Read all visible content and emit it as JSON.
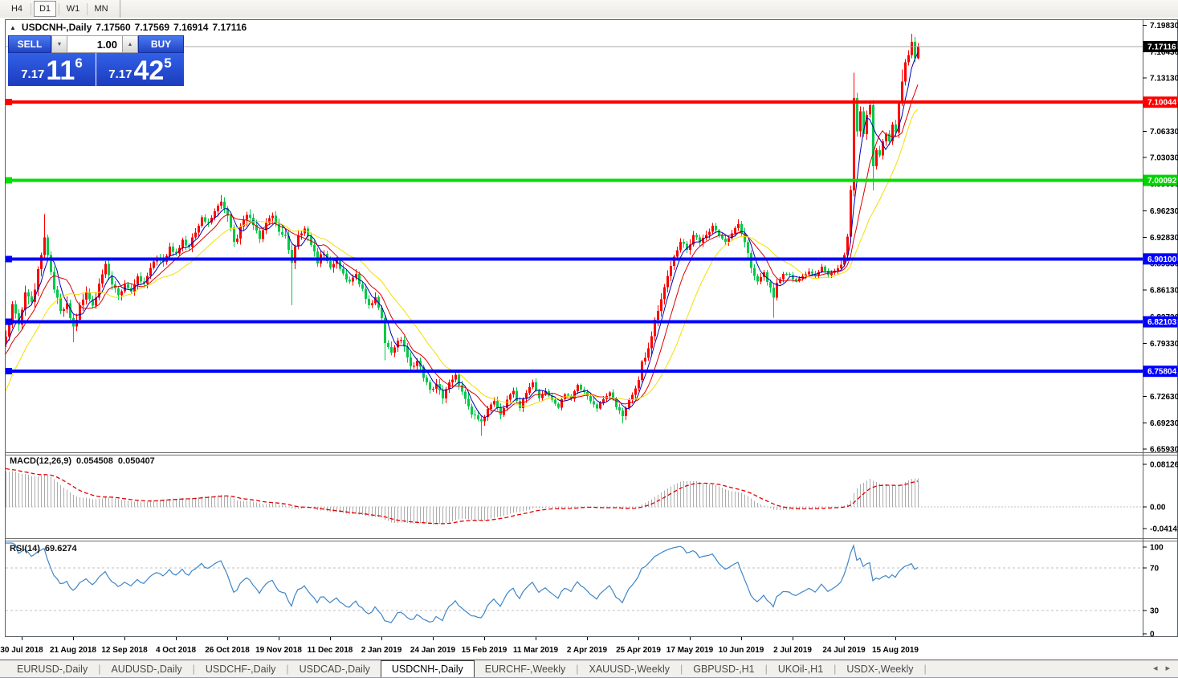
{
  "toolbar": {
    "timeframes": [
      {
        "label": "H4",
        "active": false
      },
      {
        "label": "D1",
        "active": true
      },
      {
        "label": "W1",
        "active": false
      },
      {
        "label": "MN",
        "active": false
      }
    ]
  },
  "title": {
    "collapse_icon": "▲",
    "symbol": "USDCNH-,Daily",
    "open": "7.17560",
    "high": "7.17569",
    "low": "7.16914",
    "close": "7.17116"
  },
  "trade_panel": {
    "sell_label": "SELL",
    "buy_label": "BUY",
    "volume": "1.00",
    "down_arrow": "▼",
    "up_arrow": "▲",
    "sell_price": {
      "prefix": "7.17",
      "big": "11",
      "sup": "6"
    },
    "buy_price": {
      "prefix": "7.17",
      "big": "42",
      "sup": "5"
    }
  },
  "indicator_labels": {
    "macd": {
      "name": "MACD(12,26,9)",
      "main_value": "0.054508",
      "signal_value": "0.050407"
    },
    "rsi": {
      "name": "RSI(14)",
      "value": "69.6274"
    }
  },
  "tabs": {
    "nav_left": "◂",
    "nav_right": "▸",
    "items": [
      {
        "label": "EURUSD-,Daily",
        "active": false
      },
      {
        "label": "AUDUSD-,Daily",
        "active": false
      },
      {
        "label": "USDCHF-,Daily",
        "active": false
      },
      {
        "label": "USDCAD-,Daily",
        "active": false
      },
      {
        "label": "USDCNH-,Daily",
        "active": true
      },
      {
        "label": "EURCHF-,Weekly",
        "active": false
      },
      {
        "label": "XAUUSD-,Weekly",
        "active": false
      },
      {
        "label": "GBPUSD-,H1",
        "active": false
      },
      {
        "label": "UKOil-,H1",
        "active": false
      },
      {
        "label": "USDX-,Weekly",
        "active": false
      }
    ]
  },
  "chart_data": {
    "type": "candlestick",
    "symbol": "USDCNH",
    "timeframe": "Daily",
    "current": {
      "open": 7.1756,
      "high": 7.17569,
      "low": 7.16914,
      "close": 7.17116
    },
    "price_axis_ticks": [
      "7.19830",
      "7.16430",
      "7.13130",
      "7.09730",
      "7.06330",
      "7.03030",
      "6.99630",
      "6.96230",
      "6.92830",
      "6.89530",
      "6.86130",
      "6.82730",
      "6.79330",
      "6.75930",
      "6.72630",
      "6.69230",
      "6.65930"
    ],
    "price_badges": [
      {
        "label": "7.17116",
        "color": "#000000"
      },
      {
        "label": "7.10044",
        "color": "#FF0000"
      },
      {
        "label": "7.00092",
        "color": "#00D400"
      },
      {
        "label": "6.90100",
        "color": "#0000FF"
      },
      {
        "label": "6.82103",
        "color": "#0000FF"
      },
      {
        "label": "6.75804",
        "color": "#0000FF"
      }
    ],
    "hlines": [
      {
        "price": 7.10044,
        "color": "#FF0000"
      },
      {
        "price": 7.00092,
        "color": "#00E000"
      },
      {
        "price": 6.901,
        "color": "#0000FF"
      },
      {
        "price": 6.82103,
        "color": "#0000FF"
      },
      {
        "price": 6.75804,
        "color": "#0000FF"
      }
    ],
    "current_price_line": {
      "price": 7.17116,
      "color": "#A8A8A8"
    },
    "date_labels": [
      "30 Jul 2018",
      "21 Aug 2018",
      "12 Sep 2018",
      "4 Oct 2018",
      "26 Oct 2018",
      "19 Nov 2018",
      "11 Dec 2018",
      "2 Jan 2019",
      "24 Jan 2019",
      "15 Feb 2019",
      "11 Mar 2019",
      "2 Apr 2019",
      "25 Apr 2019",
      "17 May 2019",
      "10 Jun 2019",
      "2 Jul 2019",
      "24 Jul 2019",
      "15 Aug 2019"
    ],
    "macd_axis": [
      "0.081265",
      "0.00",
      "-0.041412"
    ],
    "rsi_axis": [
      "100",
      "70",
      "30",
      "0"
    ],
    "rsi_levels": [
      70,
      30
    ],
    "ma_periods": [
      5,
      10,
      20
    ],
    "macd_params": [
      12,
      26,
      9
    ],
    "rsi_period": 14,
    "colors": {
      "candle_up": "#FF0000",
      "candle_down": "#00C848",
      "ma_fast": "#0000B8",
      "ma_mid": "#DC0000",
      "ma_slow": "#F2DF00",
      "macd_hist": "#ACACAC",
      "macd_signal": "#E00000",
      "rsi": "#3E86C8",
      "level_dash": "#C0C0C0"
    },
    "close_anchors": [
      [
        7,
        6.8,
        0.006
      ],
      [
        15,
        6.84,
        0.008
      ],
      [
        23,
        6.822,
        0.008
      ],
      [
        31,
        6.858,
        0.008
      ],
      [
        39,
        6.846,
        0.008
      ],
      [
        47,
        6.885,
        0.007
      ],
      [
        55,
        6.93,
        0.008
      ],
      [
        59,
        6.905,
        0.007
      ],
      [
        67,
        6.862,
        0.007
      ],
      [
        75,
        6.838,
        0.006
      ],
      [
        83,
        6.842,
        0.007
      ],
      [
        91,
        6.812,
        0.006
      ],
      [
        99,
        6.842,
        0.006
      ],
      [
        107,
        6.858,
        0.006
      ],
      [
        115,
        6.842,
        0.006
      ],
      [
        123,
        6.868,
        0.006
      ],
      [
        131,
        6.893,
        0.006
      ],
      [
        139,
        6.872,
        0.006
      ],
      [
        147,
        6.852,
        0.006
      ],
      [
        155,
        6.868,
        0.005
      ],
      [
        163,
        6.858,
        0.005
      ],
      [
        171,
        6.878,
        0.005
      ],
      [
        179,
        6.87,
        0.005
      ],
      [
        187,
        6.888,
        0.005
      ],
      [
        195,
        6.905,
        0.005
      ],
      [
        203,
        6.898,
        0.005
      ],
      [
        211,
        6.916,
        0.005
      ],
      [
        219,
        6.908,
        0.005
      ],
      [
        227,
        6.925,
        0.005
      ],
      [
        235,
        6.917,
        0.005
      ],
      [
        243,
        6.936,
        0.005
      ],
      [
        251,
        6.955,
        0.005
      ],
      [
        259,
        6.945,
        0.005
      ],
      [
        267,
        6.964,
        0.005
      ],
      [
        275,
        6.974,
        0.005
      ],
      [
        283,
        6.955,
        0.006
      ],
      [
        291,
        6.92,
        0.006
      ],
      [
        299,
        6.94,
        0.006
      ],
      [
        307,
        6.956,
        0.006
      ],
      [
        315,
        6.947,
        0.005
      ],
      [
        323,
        6.928,
        0.006
      ],
      [
        331,
        6.948,
        0.005
      ],
      [
        339,
        6.957,
        0.005
      ],
      [
        347,
        6.938,
        0.006
      ],
      [
        355,
        6.928,
        0.006
      ],
      [
        363,
        6.898,
        0.007
      ],
      [
        371,
        6.928,
        0.006
      ],
      [
        379,
        6.94,
        0.005
      ],
      [
        387,
        6.918,
        0.005
      ],
      [
        395,
        6.898,
        0.006
      ],
      [
        403,
        6.91,
        0.005
      ],
      [
        411,
        6.89,
        0.005
      ],
      [
        419,
        6.9,
        0.005
      ],
      [
        427,
        6.882,
        0.005
      ],
      [
        435,
        6.872,
        0.005
      ],
      [
        443,
        6.88,
        0.005
      ],
      [
        451,
        6.862,
        0.005
      ],
      [
        459,
        6.842,
        0.005
      ],
      [
        467,
        6.852,
        0.005
      ],
      [
        475,
        6.828,
        0.006
      ],
      [
        479,
        6.792,
        0.006
      ],
      [
        487,
        6.782,
        0.006
      ],
      [
        495,
        6.8,
        0.006
      ],
      [
        503,
        6.792,
        0.005
      ],
      [
        511,
        6.762,
        0.006
      ],
      [
        519,
        6.772,
        0.005
      ],
      [
        527,
        6.752,
        0.005
      ],
      [
        535,
        6.732,
        0.006
      ],
      [
        543,
        6.742,
        0.005
      ],
      [
        551,
        6.722,
        0.006
      ],
      [
        559,
        6.745,
        0.005
      ],
      [
        567,
        6.752,
        0.005
      ],
      [
        575,
        6.732,
        0.005
      ],
      [
        583,
        6.712,
        0.006
      ],
      [
        591,
        6.7,
        0.006
      ],
      [
        599,
        6.692,
        0.005
      ],
      [
        607,
        6.712,
        0.005
      ],
      [
        615,
        6.722,
        0.005
      ],
      [
        623,
        6.702,
        0.005
      ],
      [
        631,
        6.722,
        0.004
      ],
      [
        639,
        6.732,
        0.004
      ],
      [
        647,
        6.712,
        0.004
      ],
      [
        655,
        6.73,
        0.004
      ],
      [
        663,
        6.742,
        0.004
      ],
      [
        671,
        6.722,
        0.004
      ],
      [
        679,
        6.732,
        0.003
      ],
      [
        687,
        6.722,
        0.003
      ],
      [
        695,
        6.712,
        0.003
      ],
      [
        703,
        6.73,
        0.003
      ],
      [
        711,
        6.722,
        0.003
      ],
      [
        719,
        6.74,
        0.003
      ],
      [
        727,
        6.732,
        0.003
      ],
      [
        735,
        6.72,
        0.003
      ],
      [
        743,
        6.712,
        0.004
      ],
      [
        751,
        6.722,
        0.003
      ],
      [
        759,
        6.732,
        0.003
      ],
      [
        767,
        6.712,
        0.003
      ],
      [
        775,
        6.702,
        0.004
      ],
      [
        783,
        6.722,
        0.004
      ],
      [
        791,
        6.738,
        0.004
      ],
      [
        795,
        6.748,
        0.004
      ],
      [
        799,
        6.768,
        0.005
      ],
      [
        807,
        6.788,
        0.006
      ],
      [
        815,
        6.822,
        0.007
      ],
      [
        823,
        6.852,
        0.007
      ],
      [
        831,
        6.882,
        0.006
      ],
      [
        839,
        6.902,
        0.006
      ],
      [
        847,
        6.922,
        0.006
      ],
      [
        855,
        6.912,
        0.005
      ],
      [
        863,
        6.932,
        0.005
      ],
      [
        871,
        6.922,
        0.005
      ],
      [
        879,
        6.932,
        0.004
      ],
      [
        887,
        6.942,
        0.004
      ],
      [
        895,
        6.932,
        0.004
      ],
      [
        903,
        6.922,
        0.004
      ],
      [
        911,
        6.932,
        0.004
      ],
      [
        919,
        6.944,
        0.005
      ],
      [
        927,
        6.922,
        0.005
      ],
      [
        935,
        6.892,
        0.006
      ],
      [
        943,
        6.872,
        0.005
      ],
      [
        951,
        6.882,
        0.004
      ],
      [
        959,
        6.862,
        0.005
      ],
      [
        963,
        6.852,
        0.005
      ],
      [
        967,
        6.872,
        0.004
      ],
      [
        975,
        6.882,
        0.003
      ],
      [
        983,
        6.88,
        0.003
      ],
      [
        991,
        6.872,
        0.003
      ],
      [
        999,
        6.88,
        0.003
      ],
      [
        1007,
        6.885,
        0.003
      ],
      [
        1015,
        6.88,
        0.003
      ],
      [
        1023,
        6.89,
        0.003
      ],
      [
        1031,
        6.882,
        0.003
      ],
      [
        1039,
        6.886,
        0.003
      ],
      [
        1047,
        6.892,
        0.004
      ],
      [
        1051,
        6.905,
        0.005
      ],
      [
        1055,
        6.932,
        0.006
      ],
      [
        1059,
        6.985,
        0.007
      ],
      [
        1063,
        7.102,
        0.008
      ],
      [
        1067,
        7.062,
        0.008
      ],
      [
        1071,
        7.092,
        0.007
      ],
      [
        1075,
        7.062,
        0.006
      ],
      [
        1079,
        7.082,
        0.006
      ],
      [
        1083,
        7.098,
        0.006
      ],
      [
        1087,
        7.022,
        0.007
      ],
      [
        1091,
        7.042,
        0.006
      ],
      [
        1095,
        7.032,
        0.005
      ],
      [
        1099,
        7.052,
        0.005
      ],
      [
        1103,
        7.062,
        0.004
      ],
      [
        1107,
        7.052,
        0.004
      ],
      [
        1111,
        7.072,
        0.004
      ],
      [
        1115,
        7.062,
        0.005
      ],
      [
        1119,
        7.102,
        0.006
      ],
      [
        1123,
        7.128,
        0.006
      ],
      [
        1127,
        7.152,
        0.005
      ],
      [
        1131,
        7.162,
        0.005
      ],
      [
        1135,
        7.175,
        0.005
      ],
      [
        1139,
        7.158,
        0.005
      ],
      [
        1143,
        7.17116,
        0.003
      ]
    ],
    "spikes_high": [
      [
        55,
        6.958
      ],
      [
        275,
        6.982
      ],
      [
        1063,
        7.138
      ],
      [
        1123,
        7.142
      ],
      [
        1135,
        7.1875
      ]
    ],
    "spikes_low": [
      [
        91,
        6.795
      ],
      [
        363,
        6.842
      ],
      [
        479,
        6.772
      ],
      [
        599,
        6.676
      ],
      [
        775,
        6.692
      ],
      [
        963,
        6.826
      ],
      [
        1087,
        6.988
      ]
    ]
  }
}
